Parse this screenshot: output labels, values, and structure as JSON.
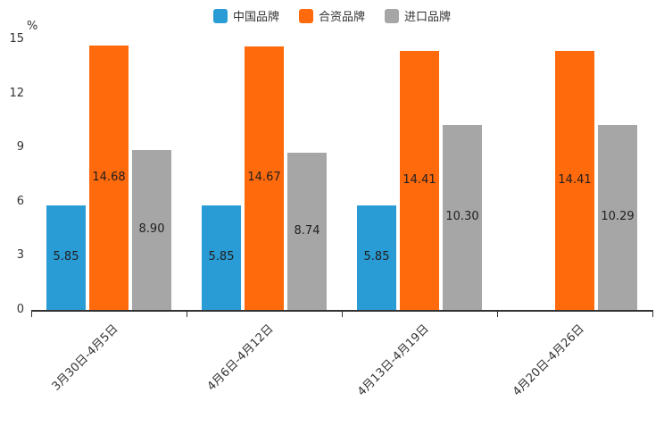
{
  "chart": {
    "percent_label": "%"
  },
  "chart_data": {
    "type": "bar",
    "title": "",
    "xlabel": "",
    "ylabel": "%",
    "ylim": [
      0,
      15
    ],
    "yticks": [
      0,
      3,
      6,
      9,
      12,
      15
    ],
    "grid": false,
    "legend_position": "top",
    "categories": [
      "3月30日-4月5日",
      "4月6日-4月12日",
      "4月13日-4月19日",
      "4月20日-4月26日"
    ],
    "series": [
      {
        "name": "中国品牌",
        "color": "#2a9cd5",
        "values": [
          5.85,
          5.85,
          5.85,
          null
        ],
        "labels": [
          "5.85",
          "5.85",
          "5.85",
          ""
        ]
      },
      {
        "name": "合资品牌",
        "color": "#ff6a0d",
        "values": [
          14.68,
          14.67,
          14.41,
          14.41
        ],
        "labels": [
          "14.68",
          "14.67",
          "14.41",
          "14.41"
        ]
      },
      {
        "name": "进口品牌",
        "color": "#a6a6a6",
        "values": [
          8.9,
          8.74,
          10.3,
          10.29
        ],
        "labels": [
          "8.90",
          "8.74",
          "10.30",
          "10.29"
        ]
      }
    ]
  }
}
